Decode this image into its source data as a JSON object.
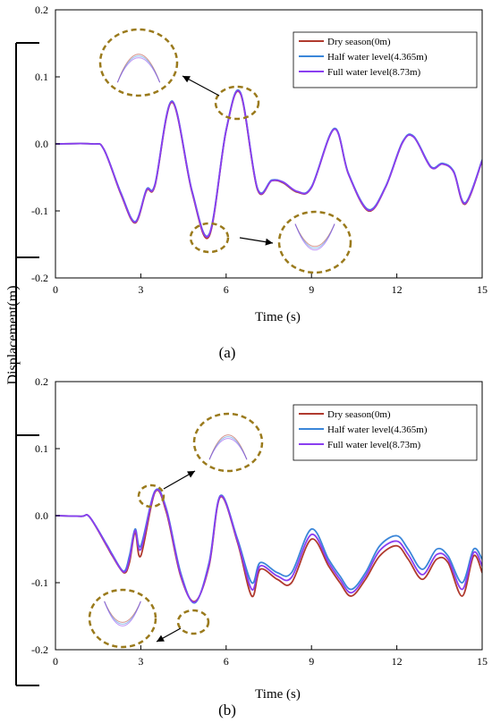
{
  "figure": {
    "shared_ylabel": "Displacement(m)",
    "legend_entries": [
      {
        "label": "Dry season(0m)",
        "color": "#b03a2e"
      },
      {
        "label": "Half water level(4.365m)",
        "color": "#3a86d9"
      },
      {
        "label": "Full water level(8.73m)",
        "color": "#8a3ef0"
      }
    ]
  },
  "chart_data": [
    {
      "type": "line",
      "panel_label": "(a)",
      "xlabel": "Time (s)",
      "ylabel": "Displacement(m)",
      "xlim": [
        0,
        15
      ],
      "ylim": [
        -0.2,
        0.2
      ],
      "xticks": [
        0,
        3,
        6,
        9,
        12,
        15
      ],
      "yticks": [
        0.2,
        0.1,
        0.0,
        -0.1,
        -0.2
      ],
      "x": [
        0,
        1.3,
        1.7,
        2.3,
        2.8,
        3.2,
        3.5,
        4.1,
        4.8,
        5.4,
        6.0,
        6.5,
        7.1,
        7.6,
        8.0,
        8.5,
        9.0,
        9.8,
        10.3,
        11.0,
        11.6,
        12.2,
        12.6,
        13.2,
        13.6,
        14.0,
        14.4,
        15.0
      ],
      "series": [
        {
          "name": "Dry season(0m)",
          "color": "#b03a2e",
          "values": [
            0,
            0,
            -0.008,
            -0.075,
            -0.118,
            -0.07,
            -0.062,
            0.062,
            -0.072,
            -0.138,
            0.02,
            0.075,
            -0.068,
            -0.055,
            -0.058,
            -0.072,
            -0.065,
            0.022,
            -0.045,
            -0.1,
            -0.065,
            0.002,
            0.01,
            -0.035,
            -0.03,
            -0.042,
            -0.09,
            -0.025
          ]
        },
        {
          "name": "Half water level(4.365m)",
          "color": "#3a86d9",
          "values": [
            0,
            0,
            -0.008,
            -0.073,
            -0.116,
            -0.068,
            -0.06,
            0.064,
            -0.07,
            -0.135,
            0.021,
            0.077,
            -0.066,
            -0.054,
            -0.057,
            -0.071,
            -0.064,
            0.023,
            -0.044,
            -0.098,
            -0.064,
            0.003,
            0.011,
            -0.034,
            -0.029,
            -0.041,
            -0.088,
            -0.024
          ]
        },
        {
          "name": "Full water level(8.73m)",
          "color": "#8a3ef0",
          "values": [
            0,
            0,
            -0.008,
            -0.074,
            -0.117,
            -0.069,
            -0.061,
            0.063,
            -0.071,
            -0.136,
            0.02,
            0.076,
            -0.067,
            -0.055,
            -0.057,
            -0.071,
            -0.065,
            0.022,
            -0.045,
            -0.099,
            -0.065,
            0.002,
            0.01,
            -0.035,
            -0.03,
            -0.042,
            -0.089,
            -0.025
          ]
        }
      ],
      "legend_position": "top-right",
      "grid": false
    },
    {
      "type": "line",
      "panel_label": "(b)",
      "xlabel": "Time (s)",
      "ylabel": "Displacement(m)",
      "xlim": [
        0,
        15
      ],
      "ylim": [
        -0.2,
        0.2
      ],
      "xticks": [
        0,
        3,
        6,
        9,
        12,
        15
      ],
      "yticks": [
        0.2,
        0.1,
        0.0,
        -0.1,
        -0.2
      ],
      "x": [
        0,
        0.9,
        1.2,
        1.8,
        2.0,
        2.4,
        2.6,
        2.8,
        3.0,
        3.5,
        3.9,
        4.4,
        4.9,
        5.4,
        5.8,
        6.4,
        6.9,
        7.2,
        7.8,
        8.3,
        9.0,
        9.6,
        10.0,
        10.4,
        10.9,
        11.4,
        12.0,
        12.4,
        12.9,
        13.4,
        13.8,
        14.3,
        14.7,
        15.0
      ],
      "series": [
        {
          "name": "Dry season(0m)",
          "color": "#b03a2e",
          "values": [
            0,
            -0.001,
            -0.002,
            -0.045,
            -0.06,
            -0.085,
            -0.07,
            -0.025,
            -0.06,
            0.035,
            0.005,
            -0.09,
            -0.128,
            -0.075,
            0.028,
            -0.04,
            -0.12,
            -0.08,
            -0.095,
            -0.1,
            -0.035,
            -0.075,
            -0.1,
            -0.12,
            -0.095,
            -0.06,
            -0.045,
            -0.065,
            -0.095,
            -0.065,
            -0.07,
            -0.12,
            -0.06,
            -0.085
          ]
        },
        {
          "name": "Half water level(4.365m)",
          "color": "#3a86d9",
          "values": [
            0,
            -0.001,
            -0.002,
            -0.043,
            -0.058,
            -0.083,
            -0.06,
            -0.02,
            -0.045,
            0.037,
            0.01,
            -0.085,
            -0.13,
            -0.07,
            0.03,
            -0.035,
            -0.1,
            -0.07,
            -0.085,
            -0.085,
            -0.02,
            -0.065,
            -0.09,
            -0.11,
            -0.085,
            -0.045,
            -0.03,
            -0.05,
            -0.08,
            -0.05,
            -0.06,
            -0.1,
            -0.05,
            -0.065
          ]
        },
        {
          "name": "Full water level(8.73m)",
          "color": "#8a3ef0",
          "values": [
            0,
            -0.001,
            -0.002,
            -0.044,
            -0.059,
            -0.084,
            -0.065,
            -0.022,
            -0.05,
            0.036,
            0.008,
            -0.088,
            -0.129,
            -0.073,
            0.029,
            -0.038,
            -0.11,
            -0.075,
            -0.09,
            -0.092,
            -0.028,
            -0.07,
            -0.095,
            -0.115,
            -0.09,
            -0.052,
            -0.038,
            -0.058,
            -0.088,
            -0.058,
            -0.065,
            -0.11,
            -0.055,
            -0.075
          ]
        }
      ],
      "legend_position": "top-right",
      "grid": false
    }
  ]
}
